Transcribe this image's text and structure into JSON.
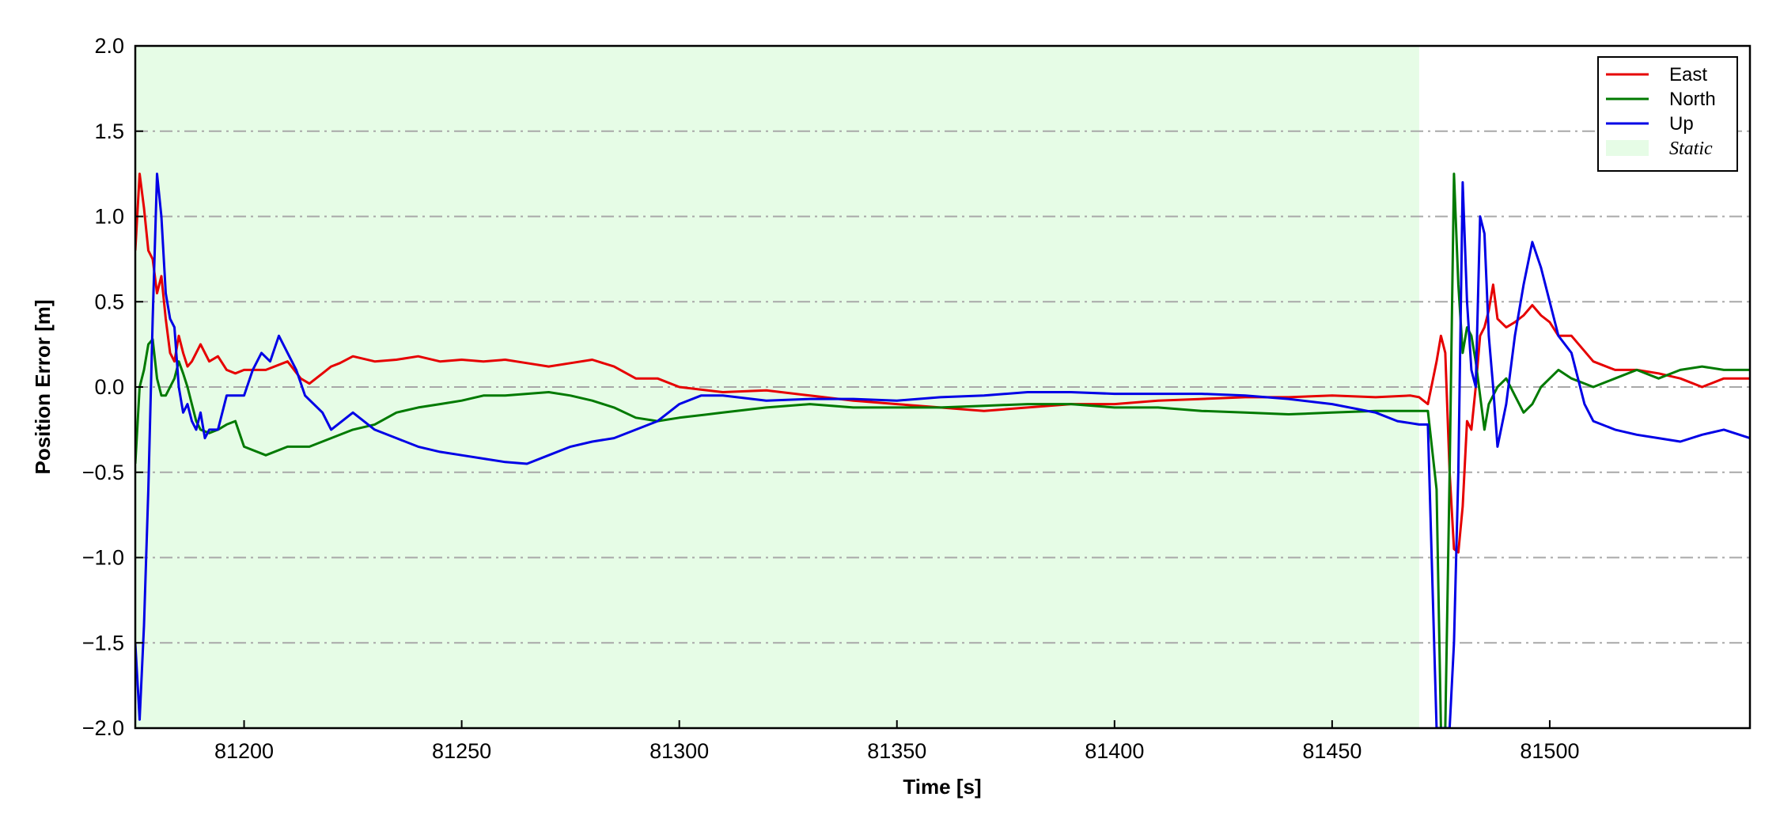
{
  "chart_data": {
    "type": "line",
    "xlabel": "Time [s]",
    "ylabel": "Position Error [m]",
    "xlim": [
      81175,
      81546
    ],
    "ylim": [
      -2.0,
      2.0
    ],
    "xticks": [
      81200,
      81250,
      81300,
      81350,
      81400,
      81450,
      81500
    ],
    "xtick_labels": [
      "81200",
      "81250",
      "81300",
      "81350",
      "81400",
      "81450",
      "81500"
    ],
    "yticks": [
      2.0,
      1.5,
      1.0,
      0.5,
      0.0,
      -0.5,
      -1.0,
      -1.5,
      -2.0
    ],
    "ytick_labels": [
      "2.0",
      "1.5",
      "1.0",
      "0.5",
      "0.0",
      "−0.5",
      "−1.0",
      "−1.5",
      "−2.0"
    ],
    "grid": "horizontal dash-dot",
    "legend_position": "top-right",
    "static_region": {
      "label": "Static",
      "x_start": 81175,
      "x_end": 81470,
      "color": "#e6fce6"
    },
    "series": [
      {
        "name": "East",
        "color": "#e60000",
        "x": [
          81175,
          81176,
          81177,
          81178,
          81179,
          81180,
          81181,
          81182,
          81183,
          81184,
          81185,
          81186,
          81187,
          81188,
          81190,
          81192,
          81194,
          81196,
          81198,
          81200,
          81205,
          81210,
          81213,
          81215,
          81218,
          81220,
          81222,
          81225,
          81230,
          81235,
          81240,
          81245,
          81250,
          81255,
          81260,
          81265,
          81270,
          81275,
          81280,
          81285,
          81290,
          81295,
          81300,
          81310,
          81320,
          81330,
          81340,
          81350,
          81360,
          81370,
          81380,
          81390,
          81400,
          81410,
          81420,
          81430,
          81440,
          81450,
          81460,
          81468,
          81470,
          81472,
          81474,
          81475,
          81476,
          81477,
          81478,
          81479,
          81480,
          81481,
          81482,
          81483,
          81484,
          81485,
          81486,
          81487,
          81488,
          81490,
          81492,
          81494,
          81496,
          81498,
          81500,
          81502,
          81505,
          81510,
          81515,
          81520,
          81525,
          81530,
          81535,
          81540,
          81546
        ],
        "y": [
          0.8,
          1.25,
          1.05,
          0.8,
          0.75,
          0.55,
          0.65,
          0.4,
          0.2,
          0.15,
          0.3,
          0.2,
          0.12,
          0.15,
          0.25,
          0.15,
          0.18,
          0.1,
          0.08,
          0.1,
          0.1,
          0.15,
          0.05,
          0.02,
          0.08,
          0.12,
          0.14,
          0.18,
          0.15,
          0.16,
          0.18,
          0.15,
          0.16,
          0.15,
          0.16,
          0.14,
          0.12,
          0.14,
          0.16,
          0.12,
          0.05,
          0.05,
          0.0,
          -0.03,
          -0.02,
          -0.05,
          -0.08,
          -0.1,
          -0.12,
          -0.14,
          -0.12,
          -0.1,
          -0.1,
          -0.08,
          -0.07,
          -0.06,
          -0.06,
          -0.05,
          -0.06,
          -0.05,
          -0.06,
          -0.1,
          0.15,
          0.3,
          0.2,
          -0.5,
          -0.95,
          -0.97,
          -0.7,
          -0.2,
          -0.25,
          0.0,
          0.3,
          0.35,
          0.45,
          0.6,
          0.4,
          0.35,
          0.38,
          0.42,
          0.48,
          0.42,
          0.38,
          0.3,
          0.3,
          0.15,
          0.1,
          0.1,
          0.08,
          0.05,
          0.0,
          0.05,
          0.05
        ]
      },
      {
        "name": "North",
        "color": "#007a00",
        "x": [
          81175,
          81176,
          81177,
          81178,
          81179,
          81180,
          81181,
          81182,
          81183,
          81184,
          81185,
          81186,
          81187,
          81188,
          81189,
          81190,
          81192,
          81194,
          81196,
          81198,
          81200,
          81205,
          81210,
          81215,
          81220,
          81225,
          81230,
          81235,
          81240,
          81245,
          81250,
          81255,
          81260,
          81265,
          81270,
          81275,
          81280,
          81285,
          81290,
          81295,
          81300,
          81310,
          81320,
          81330,
          81340,
          81350,
          81360,
          81370,
          81380,
          81390,
          81400,
          81410,
          81420,
          81430,
          81440,
          81450,
          81460,
          81470,
          81472,
          81474,
          81475,
          81476,
          81477,
          81478,
          81479,
          81480,
          81481,
          81482,
          81483,
          81484,
          81485,
          81486,
          81488,
          81490,
          81492,
          81494,
          81496,
          81498,
          81500,
          81502,
          81505,
          81510,
          81515,
          81520,
          81525,
          81530,
          81535,
          81540,
          81546
        ],
        "y": [
          -0.45,
          0.0,
          0.1,
          0.25,
          0.28,
          0.05,
          -0.05,
          -0.05,
          0.0,
          0.05,
          0.15,
          0.08,
          0.0,
          -0.1,
          -0.2,
          -0.25,
          -0.27,
          -0.25,
          -0.22,
          -0.2,
          -0.35,
          -0.4,
          -0.35,
          -0.35,
          -0.3,
          -0.25,
          -0.22,
          -0.15,
          -0.12,
          -0.1,
          -0.08,
          -0.05,
          -0.05,
          -0.04,
          -0.03,
          -0.05,
          -0.08,
          -0.12,
          -0.18,
          -0.2,
          -0.18,
          -0.15,
          -0.12,
          -0.1,
          -0.12,
          -0.12,
          -0.12,
          -0.11,
          -0.1,
          -0.1,
          -0.12,
          -0.12,
          -0.14,
          -0.15,
          -0.16,
          -0.15,
          -0.14,
          -0.14,
          -0.14,
          -0.6,
          -2.0,
          -2.0,
          -0.5,
          1.25,
          0.6,
          0.2,
          0.35,
          0.3,
          0.15,
          -0.05,
          -0.25,
          -0.1,
          0.0,
          0.05,
          -0.05,
          -0.15,
          -0.1,
          0.0,
          0.05,
          0.1,
          0.05,
          0.0,
          0.05,
          0.1,
          0.05,
          0.1,
          0.12,
          0.1,
          0.1
        ]
      },
      {
        "name": "Up",
        "color": "#0000e6",
        "x": [
          81175,
          81176,
          81177,
          81178,
          81179,
          81180,
          81181,
          81182,
          81183,
          81184,
          81185,
          81186,
          81187,
          81188,
          81189,
          81190,
          81191,
          81192,
          81194,
          81196,
          81198,
          81200,
          81202,
          81204,
          81206,
          81208,
          81210,
          81212,
          81214,
          81216,
          81218,
          81220,
          81225,
          81230,
          81235,
          81240,
          81245,
          81250,
          81255,
          81260,
          81265,
          81270,
          81275,
          81280,
          81285,
          81290,
          81295,
          81300,
          81305,
          81310,
          81320,
          81330,
          81340,
          81350,
          81360,
          81370,
          81380,
          81390,
          81400,
          81410,
          81420,
          81430,
          81440,
          81450,
          81460,
          81465,
          81470,
          81472,
          81474,
          81475,
          81476,
          81477,
          81478,
          81479,
          81480,
          81481,
          81482,
          81483,
          81484,
          81485,
          81486,
          81487,
          81488,
          81490,
          81492,
          81494,
          81496,
          81498,
          81500,
          81502,
          81505,
          81508,
          81510,
          81515,
          81520,
          81525,
          81530,
          81535,
          81540,
          81546
        ],
        "y": [
          -1.5,
          -1.95,
          -1.4,
          -0.6,
          0.4,
          1.25,
          1.0,
          0.55,
          0.4,
          0.35,
          0.0,
          -0.15,
          -0.1,
          -0.2,
          -0.25,
          -0.15,
          -0.3,
          -0.25,
          -0.25,
          -0.05,
          -0.05,
          -0.05,
          0.1,
          0.2,
          0.15,
          0.3,
          0.2,
          0.1,
          -0.05,
          -0.1,
          -0.15,
          -0.25,
          -0.15,
          -0.25,
          -0.3,
          -0.35,
          -0.38,
          -0.4,
          -0.42,
          -0.44,
          -0.45,
          -0.4,
          -0.35,
          -0.32,
          -0.3,
          -0.25,
          -0.2,
          -0.1,
          -0.05,
          -0.05,
          -0.08,
          -0.07,
          -0.07,
          -0.08,
          -0.06,
          -0.05,
          -0.03,
          -0.03,
          -0.04,
          -0.04,
          -0.04,
          -0.05,
          -0.07,
          -0.1,
          -0.15,
          -0.2,
          -0.22,
          -0.22,
          -2.0,
          -2.0,
          -2.0,
          -2.0,
          -1.5,
          -0.5,
          1.2,
          0.5,
          0.1,
          0.0,
          1.0,
          0.9,
          0.3,
          0.0,
          -0.35,
          -0.1,
          0.3,
          0.6,
          0.85,
          0.7,
          0.5,
          0.3,
          0.2,
          -0.1,
          -0.2,
          -0.25,
          -0.28,
          -0.3,
          -0.32,
          -0.28,
          -0.25,
          -0.3
        ]
      }
    ]
  },
  "legend": {
    "entries": [
      {
        "label": "East",
        "color": "#e60000",
        "kind": "line"
      },
      {
        "label": "North",
        "color": "#007a00",
        "kind": "line"
      },
      {
        "label": "Up",
        "color": "#0000e6",
        "kind": "line"
      },
      {
        "label": "Static",
        "color": "#e6fce6",
        "kind": "patch"
      }
    ]
  }
}
